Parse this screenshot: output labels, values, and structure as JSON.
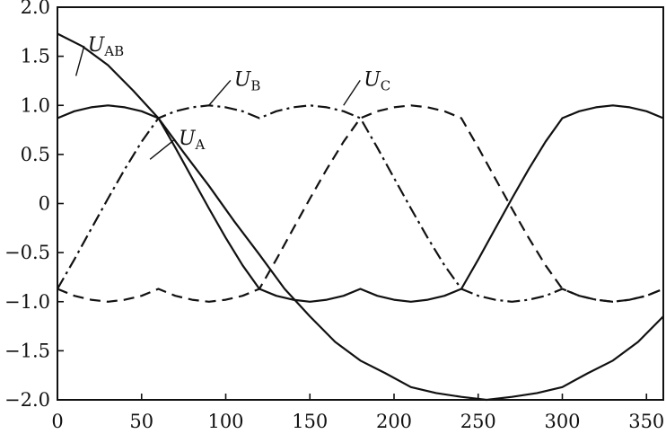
{
  "chart_data": {
    "type": "line",
    "title": "",
    "xlabel": "",
    "ylabel": "",
    "xlim": [
      0,
      360
    ],
    "ylim": [
      -2.0,
      2.0
    ],
    "grid": false,
    "x_ticks": [
      0,
      50,
      100,
      150,
      200,
      250,
      300,
      350
    ],
    "x_tick_labels": [
      "0",
      "50",
      "100",
      "150",
      "200",
      "250",
      "300",
      "350"
    ],
    "y_ticks": [
      2.0,
      1.5,
      1.0,
      0.5,
      0,
      -0.5,
      -1.0,
      -1.5,
      -2.0
    ],
    "y_tick_labels": [
      "2.0",
      "1.5",
      "1.0",
      "0.5",
      "0",
      "−0.5",
      "−1.0",
      "−1.5",
      "−2.0"
    ],
    "series": [
      {
        "name": "U_AB",
        "label_main": "U",
        "label_sub": "AB",
        "style": "solid",
        "x": [
          0,
          15,
          30,
          45,
          60,
          75,
          90,
          105,
          120,
          135,
          150,
          165,
          180,
          195,
          210,
          225,
          240,
          255,
          270,
          285,
          300,
          315,
          330,
          345,
          360
        ],
        "values": [
          1.73,
          1.6,
          1.41,
          1.15,
          0.87,
          0.52,
          0.18,
          -0.18,
          -0.52,
          -0.87,
          -1.15,
          -1.41,
          -1.6,
          -1.73,
          -1.87,
          -1.93,
          -1.97,
          -2.0,
          -1.97,
          -1.93,
          -1.87,
          -1.73,
          -1.6,
          -1.41,
          -1.15
        ]
      },
      {
        "name": "U_A",
        "label_main": "U",
        "label_sub": "A",
        "style": "solid",
        "x": [
          0,
          10,
          20,
          30,
          40,
          50,
          60,
          70,
          80,
          90,
          100,
          110,
          120,
          130,
          140,
          150,
          160,
          170,
          180,
          190,
          200,
          210,
          220,
          230,
          240,
          250,
          260,
          270,
          280,
          290,
          300,
          310,
          320,
          330,
          340,
          350,
          360
        ],
        "values": [
          0.87,
          0.94,
          0.98,
          1.0,
          0.98,
          0.94,
          0.87,
          0.57,
          0.26,
          -0.05,
          -0.35,
          -0.63,
          -0.87,
          -0.94,
          -0.98,
          -1.0,
          -0.98,
          -0.94,
          -0.87,
          -0.94,
          -0.98,
          -1.0,
          -0.98,
          -0.94,
          -0.87,
          -0.57,
          -0.26,
          0.05,
          0.35,
          0.63,
          0.87,
          0.94,
          0.98,
          1.0,
          0.98,
          0.94,
          0.87
        ]
      },
      {
        "name": "U_B",
        "label_main": "U",
        "label_sub": "B",
        "style": "dash",
        "x": [
          0,
          10,
          20,
          30,
          40,
          50,
          60,
          70,
          80,
          90,
          100,
          110,
          120,
          130,
          140,
          150,
          160,
          170,
          180,
          190,
          200,
          210,
          220,
          230,
          240,
          250,
          260,
          270,
          280,
          290,
          300,
          310,
          320,
          330,
          340,
          350,
          360
        ],
        "values": [
          -0.87,
          -0.94,
          -0.98,
          -1.0,
          -0.98,
          -0.94,
          -0.87,
          -0.94,
          -0.98,
          -1.0,
          -0.98,
          -0.94,
          -0.87,
          -0.57,
          -0.26,
          0.05,
          0.35,
          0.63,
          0.87,
          0.94,
          0.98,
          1.0,
          0.98,
          0.94,
          0.87,
          0.57,
          0.26,
          -0.05,
          -0.35,
          -0.63,
          -0.87,
          -0.94,
          -0.98,
          -1.0,
          -0.98,
          -0.94,
          -0.87
        ]
      },
      {
        "name": "U_C",
        "label_main": "U",
        "label_sub": "C",
        "style": "dashdot",
        "x": [
          0,
          10,
          20,
          30,
          40,
          50,
          60,
          70,
          80,
          90,
          100,
          110,
          120,
          130,
          140,
          150,
          160,
          170,
          180,
          190,
          200,
          210,
          220,
          230,
          240,
          250,
          260,
          270,
          280,
          290,
          300,
          310,
          320,
          330,
          340,
          350,
          360
        ],
        "values": [
          -0.87,
          -0.57,
          -0.26,
          0.05,
          0.35,
          0.63,
          0.87,
          0.94,
          0.98,
          1.0,
          0.98,
          0.94,
          0.87,
          0.94,
          0.98,
          1.0,
          0.98,
          0.94,
          0.87,
          0.57,
          0.26,
          -0.05,
          -0.35,
          -0.63,
          -0.87,
          -0.94,
          -0.98,
          -1.0,
          -0.98,
          -0.94,
          -0.87,
          -0.94,
          -0.98,
          -1.0,
          -0.98,
          -0.94,
          -0.87
        ]
      }
    ],
    "annotations": [
      {
        "series": "U_AB",
        "text_main": "U",
        "text_sub": "AB",
        "x": 18,
        "y": 1.55
      },
      {
        "series": "U_B",
        "text_main": "U",
        "text_sub": "B",
        "x": 105,
        "y": 1.2
      },
      {
        "series": "U_A",
        "text_main": "U",
        "text_sub": "A",
        "x": 72,
        "y": 0.6
      },
      {
        "series": "U_C",
        "text_main": "U",
        "text_sub": "C",
        "x": 182,
        "y": 1.2
      }
    ]
  }
}
